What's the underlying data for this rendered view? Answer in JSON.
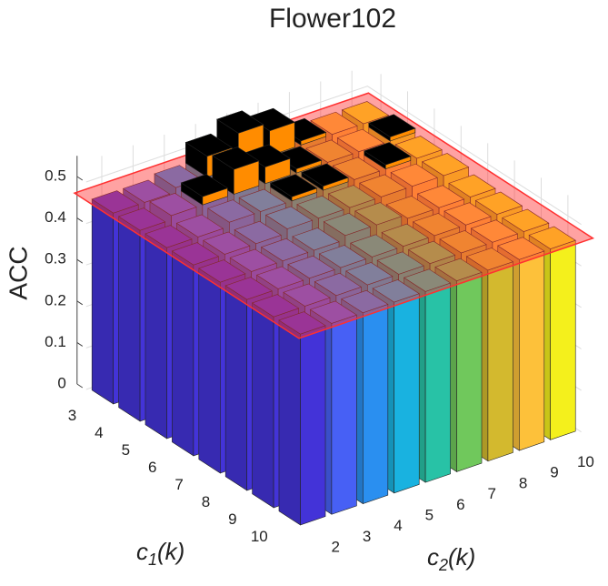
{
  "chart_data": {
    "type": "bar3",
    "title": "Flower102",
    "zlabel": "ACC",
    "xlabel": [
      "c",
      "2",
      "(k)"
    ],
    "ylabel": [
      "c",
      "1",
      "(k)"
    ],
    "x_categories": [
      "2",
      "3",
      "4",
      "5",
      "6",
      "7",
      "8",
      "9",
      "10"
    ],
    "y_categories": [
      "3",
      "4",
      "5",
      "6",
      "7",
      "8",
      "9",
      "10"
    ],
    "values": [
      [
        0.46,
        0.46,
        0.47,
        0.52,
        0.55,
        0.53,
        0.48,
        0.47,
        0.47
      ],
      [
        0.46,
        0.47,
        0.49,
        0.53,
        0.51,
        0.48,
        0.47,
        0.47,
        0.48
      ],
      [
        0.46,
        0.46,
        0.47,
        0.47,
        0.48,
        0.48,
        0.47,
        0.48,
        0.47
      ],
      [
        0.46,
        0.46,
        0.46,
        0.47,
        0.47,
        0.47,
        0.47,
        0.47,
        0.47
      ],
      [
        0.46,
        0.46,
        0.46,
        0.46,
        0.47,
        0.47,
        0.46,
        0.46,
        0.46
      ],
      [
        0.46,
        0.46,
        0.46,
        0.46,
        0.46,
        0.46,
        0.46,
        0.46,
        0.46
      ],
      [
        0.46,
        0.46,
        0.46,
        0.46,
        0.46,
        0.46,
        0.46,
        0.46,
        0.46
      ],
      [
        0.46,
        0.46,
        0.46,
        0.46,
        0.46,
        0.46,
        0.46,
        0.46,
        0.46
      ]
    ],
    "colors": [
      "#4333d8",
      "#4760f5",
      "#2a8ff0",
      "#19b2e0",
      "#28c2a6",
      "#70c85c",
      "#d3b92e",
      "#fdc13a",
      "#f4f01c"
    ],
    "zlim": [
      0,
      0.55
    ],
    "zticks": [
      0,
      0.1,
      0.2,
      0.3,
      0.4,
      0.5
    ],
    "plane": {
      "value": 0.47,
      "color": "#ff3030"
    },
    "grid": true
  }
}
